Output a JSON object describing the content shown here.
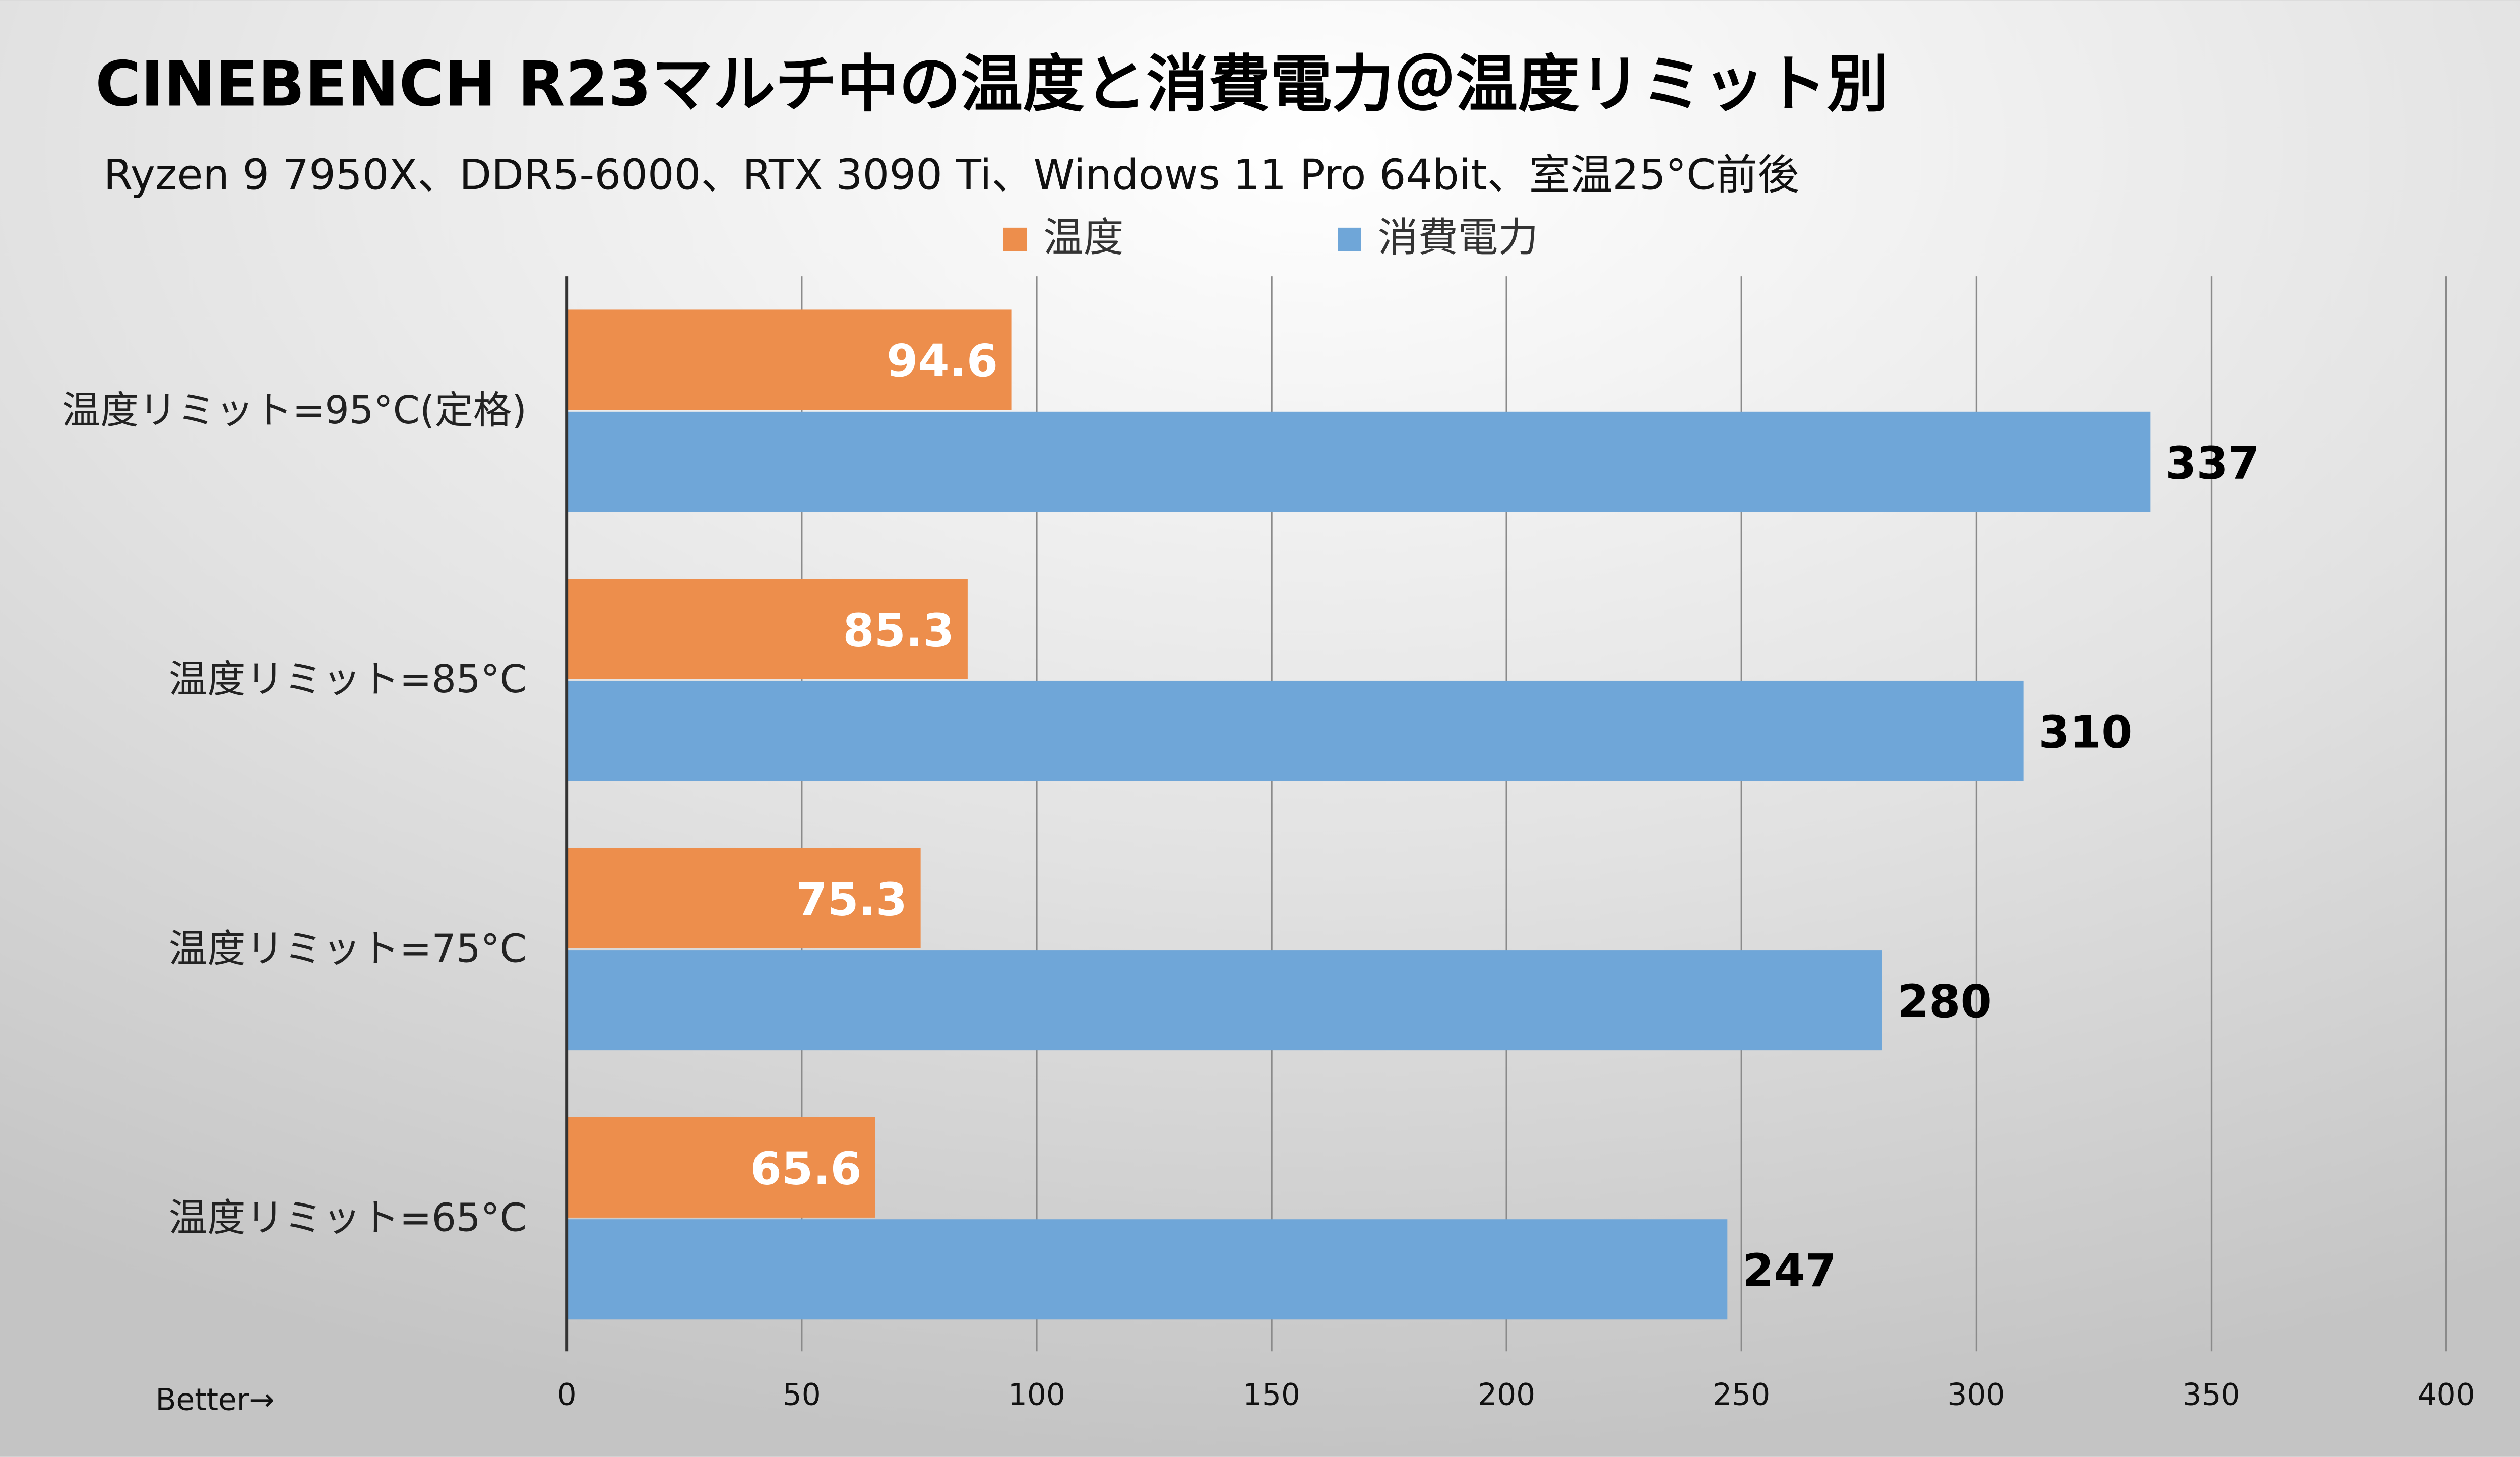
{
  "chart_data": {
    "type": "bar",
    "orientation": "horizontal",
    "title": "CINEBENCH R23マルチ中の温度と消費電力＠温度リミット別",
    "subtitle": "Ryzen 9 7950X、DDR5-6000、RTX 3090 Ti、Windows 11 Pro 64bit、室温25°C前後",
    "categories": [
      "温度リミット=95°C(定格)",
      "温度リミット=85°C",
      "温度リミット=75°C",
      "温度リミット=65°C"
    ],
    "series": [
      {
        "name": "温度",
        "color": "#ed8e4c",
        "values": [
          94.6,
          85.3,
          75.3,
          65.6
        ],
        "labels": [
          "94.6",
          "85.3",
          "75.3",
          "65.6"
        ]
      },
      {
        "name": "消費電力",
        "color": "#6fa6d8",
        "values": [
          337,
          310,
          280,
          247
        ],
        "labels": [
          "337",
          "310",
          "280",
          "247"
        ]
      }
    ],
    "xlim": [
      0,
      400
    ],
    "xticks": [
      "0",
      "50",
      "100",
      "150",
      "200",
      "250",
      "300",
      "350",
      "400"
    ],
    "xlabel": "Better→",
    "legend": "top-center",
    "grid": "vertical"
  }
}
